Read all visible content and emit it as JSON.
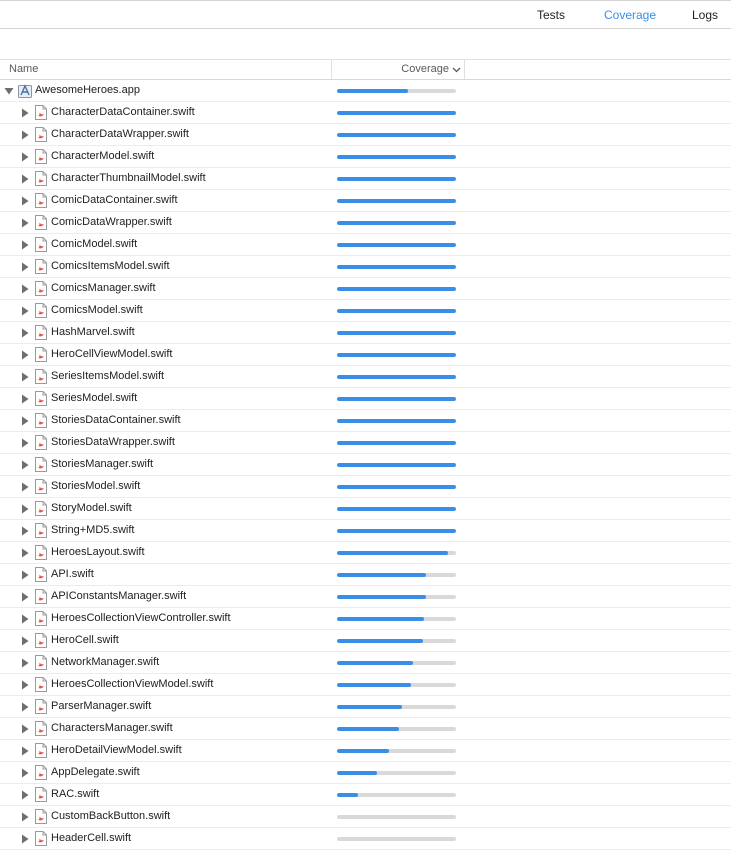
{
  "tabs": [
    {
      "label": "Tests",
      "active": false
    },
    {
      "label": "Coverage",
      "active": true
    },
    {
      "label": "Logs",
      "active": false
    }
  ],
  "columns": {
    "name": "Name",
    "coverage": "Coverage"
  },
  "colors": {
    "accent": "#3a8ee6",
    "track": "#d9d9d9",
    "swift_icon": "#e8553f"
  },
  "root": {
    "label": "AwesomeHeroes.app",
    "coverage": 0.6,
    "expanded": true,
    "icon": "app-icon"
  },
  "files": [
    {
      "label": "CharacterDataContainer.swift",
      "coverage": 1.0
    },
    {
      "label": "CharacterDataWrapper.swift",
      "coverage": 1.0
    },
    {
      "label": "CharacterModel.swift",
      "coverage": 1.0
    },
    {
      "label": "CharacterThumbnailModel.swift",
      "coverage": 1.0
    },
    {
      "label": "ComicDataContainer.swift",
      "coverage": 1.0
    },
    {
      "label": "ComicDataWrapper.swift",
      "coverage": 1.0
    },
    {
      "label": "ComicModel.swift",
      "coverage": 1.0
    },
    {
      "label": "ComicsItemsModel.swift",
      "coverage": 1.0
    },
    {
      "label": "ComicsManager.swift",
      "coverage": 1.0
    },
    {
      "label": "ComicsModel.swift",
      "coverage": 1.0
    },
    {
      "label": "HashMarvel.swift",
      "coverage": 1.0
    },
    {
      "label": "HeroCellViewModel.swift",
      "coverage": 1.0
    },
    {
      "label": "SeriesItemsModel.swift",
      "coverage": 1.0
    },
    {
      "label": "SeriesModel.swift",
      "coverage": 1.0
    },
    {
      "label": "StoriesDataContainer.swift",
      "coverage": 1.0
    },
    {
      "label": "StoriesDataWrapper.swift",
      "coverage": 1.0
    },
    {
      "label": "StoriesManager.swift",
      "coverage": 1.0
    },
    {
      "label": "StoriesModel.swift",
      "coverage": 1.0
    },
    {
      "label": "StoryModel.swift",
      "coverage": 1.0
    },
    {
      "label": "String+MD5.swift",
      "coverage": 1.0
    },
    {
      "label": "HeroesLayout.swift",
      "coverage": 0.93
    },
    {
      "label": "API.swift",
      "coverage": 0.75
    },
    {
      "label": "APIConstantsManager.swift",
      "coverage": 0.75
    },
    {
      "label": "HeroesCollectionViewController.swift",
      "coverage": 0.73
    },
    {
      "label": "HeroCell.swift",
      "coverage": 0.72
    },
    {
      "label": "NetworkManager.swift",
      "coverage": 0.64
    },
    {
      "label": "HeroesCollectionViewModel.swift",
      "coverage": 0.62
    },
    {
      "label": "ParserManager.swift",
      "coverage": 0.55
    },
    {
      "label": "CharactersManager.swift",
      "coverage": 0.52
    },
    {
      "label": "HeroDetailViewModel.swift",
      "coverage": 0.44
    },
    {
      "label": "AppDelegate.swift",
      "coverage": 0.34
    },
    {
      "label": "RAC.swift",
      "coverage": 0.18
    },
    {
      "label": "CustomBackButton.swift",
      "coverage": 0.0
    },
    {
      "label": "HeaderCell.swift",
      "coverage": 0.0
    }
  ]
}
